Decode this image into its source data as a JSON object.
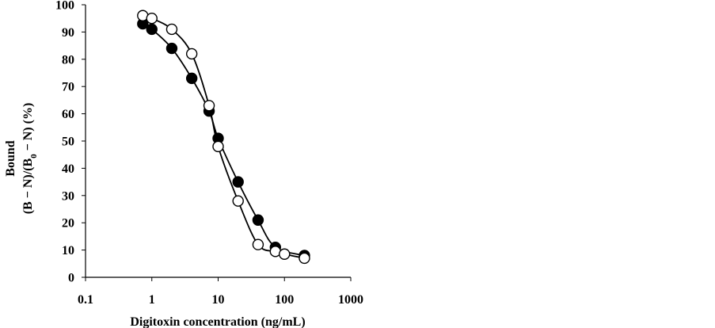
{
  "chart_data": {
    "type": "scatter",
    "title": "",
    "xlabel": "Digitoxin concentration (ng/mL)",
    "ylabel": {
      "line1": "Bound",
      "line2_prefix": "(B − N)/(B",
      "line2_sub": "0",
      "line2_suffix": " − N)  (%)"
    },
    "x_scale": "log",
    "xlim": [
      0.1,
      1000
    ],
    "ylim": [
      0,
      100
    ],
    "x_ticks": [
      {
        "value": 0.1,
        "label": "0.1"
      },
      {
        "value": 1,
        "label": "1"
      },
      {
        "value": 10,
        "label": "10"
      },
      {
        "value": 100,
        "label": "100"
      },
      {
        "value": 1000,
        "label": "1000"
      }
    ],
    "y_ticks": [
      {
        "value": 0,
        "label": "0"
      },
      {
        "value": 10,
        "label": "10"
      },
      {
        "value": 20,
        "label": "20"
      },
      {
        "value": 30,
        "label": "30"
      },
      {
        "value": 40,
        "label": "40"
      },
      {
        "value": 50,
        "label": "50"
      },
      {
        "value": 60,
        "label": "60"
      },
      {
        "value": 70,
        "label": "70"
      },
      {
        "value": 80,
        "label": "80"
      },
      {
        "value": 90,
        "label": "90"
      },
      {
        "value": 100,
        "label": "100"
      }
    ],
    "grid": false,
    "legend": "none",
    "series": [
      {
        "marker": "filled-circle",
        "color": "#000000",
        "x": [
          0.73,
          1,
          2,
          4,
          7.3,
          10,
          20,
          40,
          73,
          200
        ],
        "y": [
          93,
          91,
          84,
          73,
          61,
          51,
          35,
          21,
          11,
          8
        ]
      },
      {
        "marker": "open-circle",
        "color": "#000000",
        "x": [
          0.73,
          1,
          2,
          4,
          7.3,
          10,
          20,
          40,
          73,
          100,
          200
        ],
        "y": [
          96,
          95,
          91,
          82,
          63,
          48,
          28,
          12,
          9.5,
          8.5,
          7
        ]
      }
    ]
  }
}
